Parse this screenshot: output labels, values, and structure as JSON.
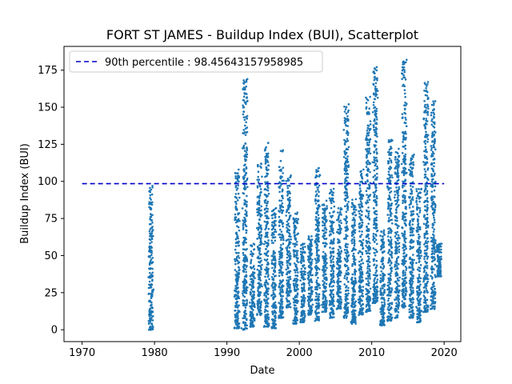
{
  "chart_data": {
    "type": "scatter",
    "title": "FORT ST JAMES - Buildup Index (BUI), Scatterplot",
    "xlabel": "Date",
    "ylabel": "Buildup Index (BUI)",
    "xlim": [
      1967.5,
      2022.3
    ],
    "ylim": [
      -8,
      191
    ],
    "xticks": [
      1970,
      1980,
      1990,
      2000,
      2010,
      2020
    ],
    "yticks": [
      0,
      25,
      50,
      75,
      100,
      125,
      150,
      175
    ],
    "grid": false,
    "legend_position": "top-left",
    "series_color": "#1f77b4",
    "reference_line": {
      "label": "90th percentile : 98.45643157958985",
      "value": 98.45643157958985,
      "x_range": [
        1970,
        2020
      ],
      "color": "#0000cc",
      "style": "dashed"
    },
    "seasons": [
      {
        "year": 1979.5,
        "min": 0,
        "max": 97
      },
      {
        "year": 1991.4,
        "min": 1,
        "max": 108
      },
      {
        "year": 1992.5,
        "min": 0,
        "max": 169
      },
      {
        "year": 1993.5,
        "min": 2,
        "max": 58
      },
      {
        "year": 1994.5,
        "min": 10,
        "max": 112
      },
      {
        "year": 1995.5,
        "min": 2,
        "max": 126
      },
      {
        "year": 1996.5,
        "min": 1,
        "max": 82
      },
      {
        "year": 1997.5,
        "min": 8,
        "max": 121
      },
      {
        "year": 1998.5,
        "min": 15,
        "max": 104
      },
      {
        "year": 1999.5,
        "min": 4,
        "max": 79
      },
      {
        "year": 2000.5,
        "min": 5,
        "max": 58
      },
      {
        "year": 2001.5,
        "min": 10,
        "max": 63
      },
      {
        "year": 2002.5,
        "min": 6,
        "max": 109
      },
      {
        "year": 2003.5,
        "min": 12,
        "max": 87
      },
      {
        "year": 2004.5,
        "min": 8,
        "max": 95
      },
      {
        "year": 2005.5,
        "min": 14,
        "max": 82
      },
      {
        "year": 2006.5,
        "min": 8,
        "max": 152
      },
      {
        "year": 2007.5,
        "min": 4,
        "max": 88
      },
      {
        "year": 2008.5,
        "min": 10,
        "max": 108
      },
      {
        "year": 2009.5,
        "min": 12,
        "max": 157
      },
      {
        "year": 2010.5,
        "min": 18,
        "max": 177
      },
      {
        "year": 2011.5,
        "min": 3,
        "max": 67
      },
      {
        "year": 2012.5,
        "min": 6,
        "max": 128
      },
      {
        "year": 2013.5,
        "min": 8,
        "max": 122
      },
      {
        "year": 2014.5,
        "min": 15,
        "max": 182
      },
      {
        "year": 2015.5,
        "min": 8,
        "max": 118
      },
      {
        "year": 2016.5,
        "min": 5,
        "max": 95
      },
      {
        "year": 2017.5,
        "min": 12,
        "max": 167
      },
      {
        "year": 2018.5,
        "min": 14,
        "max": 154
      },
      {
        "year": 2019.3,
        "min": 36,
        "max": 58
      }
    ],
    "isolated_points": [
      {
        "x": 1979.5,
        "y": 0
      },
      {
        "x": 1991.4,
        "y": 1
      },
      {
        "x": 1992.0,
        "y": 1
      },
      {
        "x": 1991.5,
        "y": 22
      },
      {
        "x": 1997.5,
        "y": 8
      }
    ]
  }
}
